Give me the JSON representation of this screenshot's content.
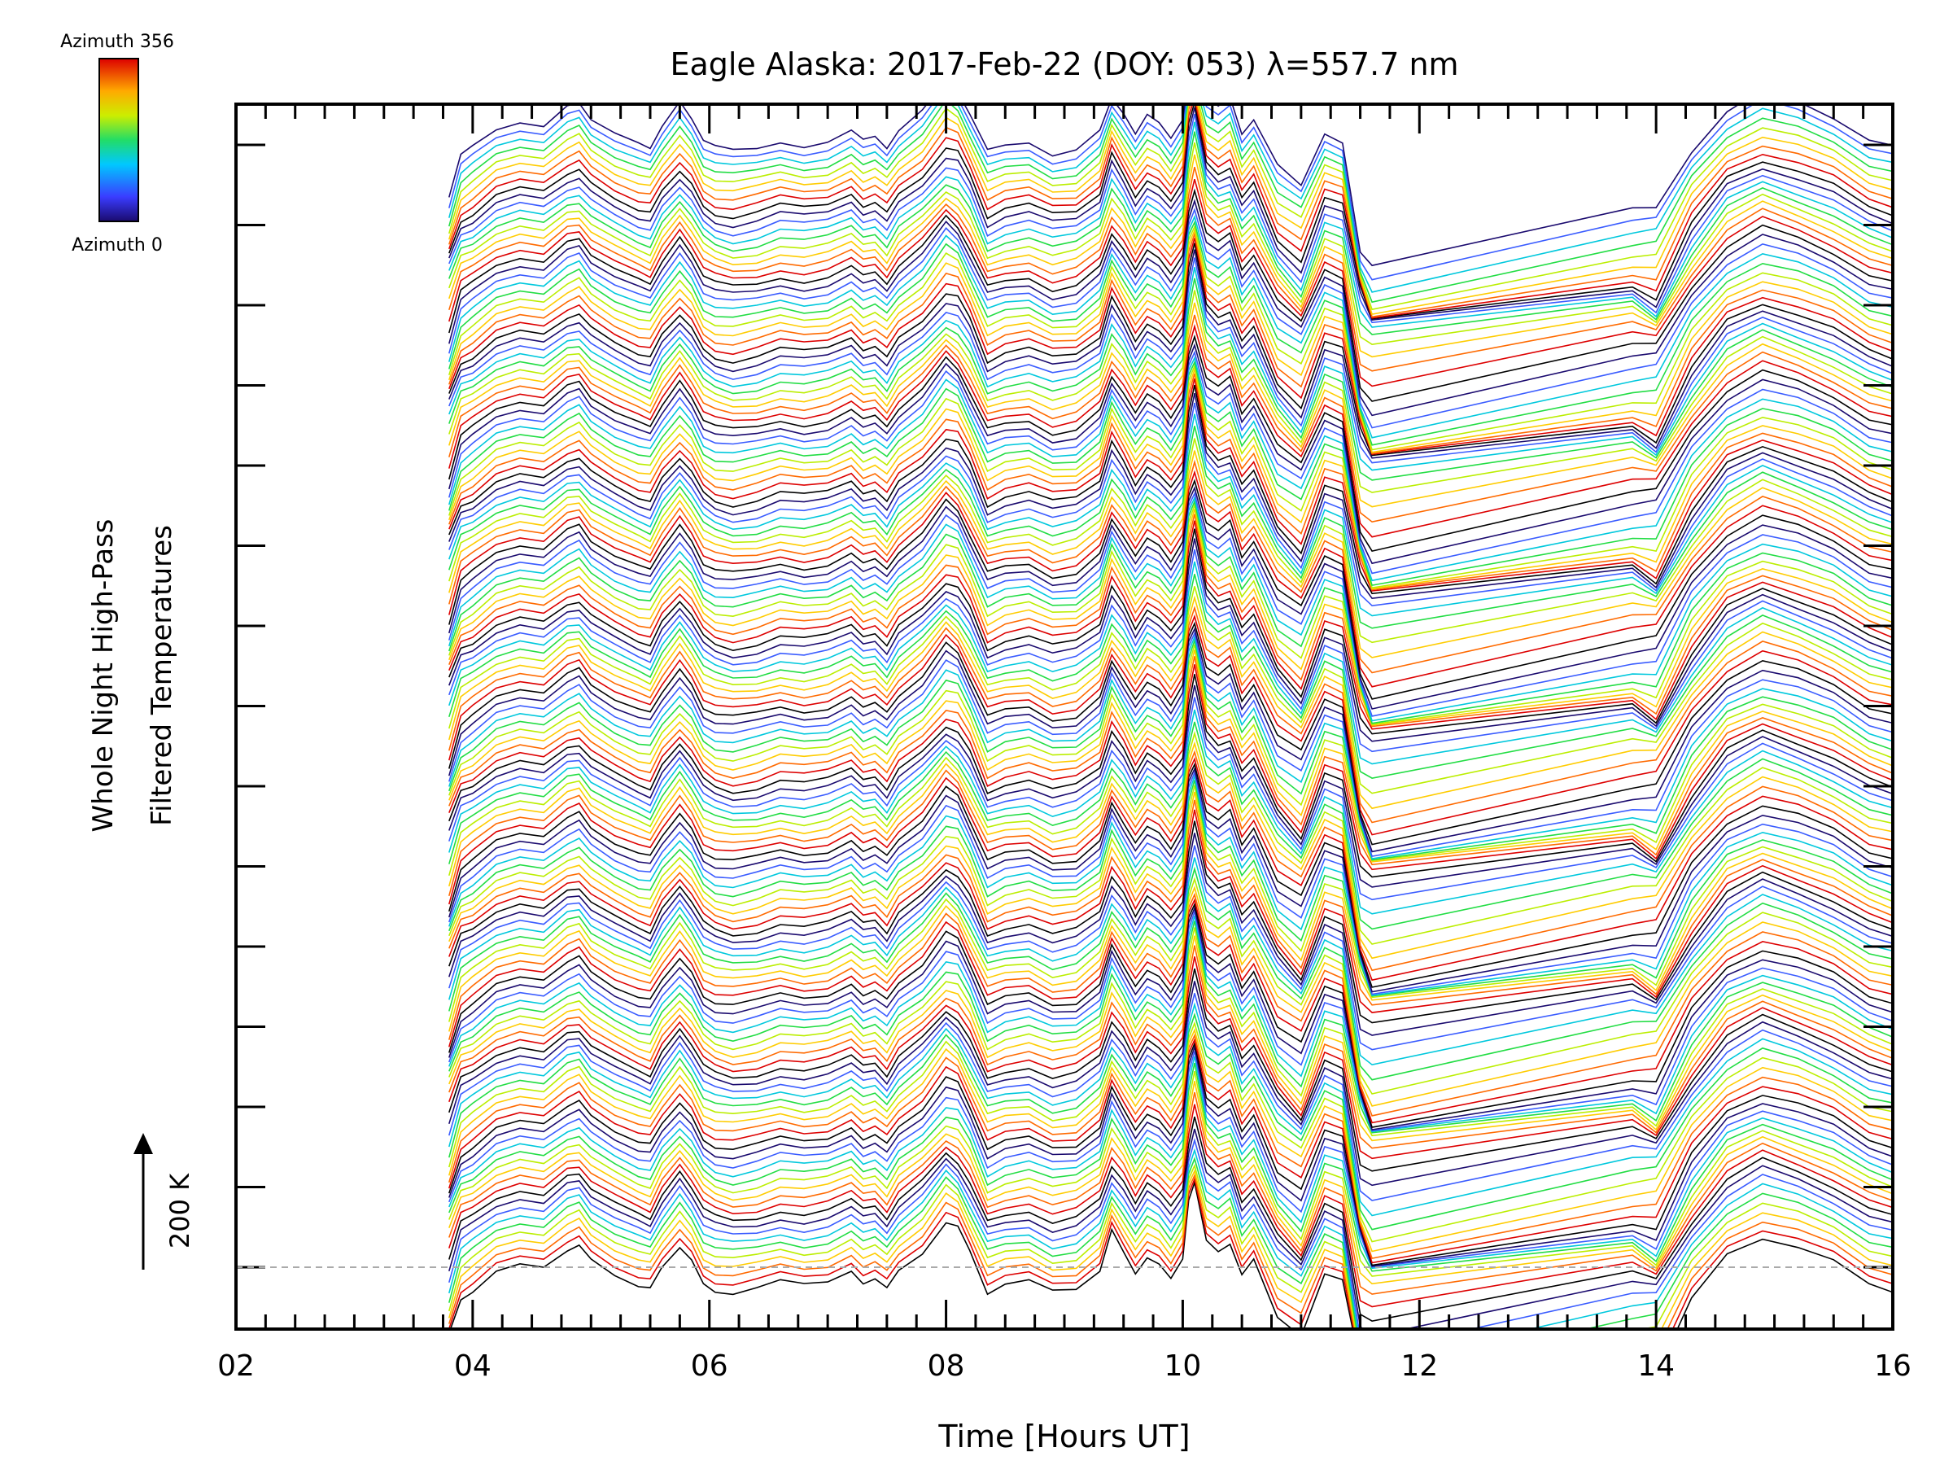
{
  "chart_data": {
    "type": "line",
    "title": "Eagle Alaska: 2017-Feb-22 (DOY: 053) λ=557.7 nm",
    "xlabel": "Time [Hours UT]",
    "ylabel_line1": "Whole Night High-Pass",
    "ylabel_line2": "Filtered Temperatures",
    "scale_label": "200 K",
    "xlim": [
      2,
      16
    ],
    "x_tick_labels": [
      "02",
      "04",
      "06",
      "08",
      "10",
      "12",
      "14",
      "16"
    ],
    "x_ticks": [
      2,
      4,
      6,
      8,
      10,
      12,
      14,
      16
    ],
    "colorbar": {
      "top_label": "Azimuth 356",
      "bottom_label": "Azimuth 0",
      "range": [
        0,
        356
      ],
      "colormap": "rainbow"
    },
    "grid": false,
    "baseline_dashed": true,
    "data_start": 3.8,
    "data_end": 16,
    "gap": [
      11.6,
      13.8
    ],
    "n_series": 144,
    "series_shape": {
      "x": [
        3.8,
        3.9,
        4.0,
        4.2,
        4.4,
        4.6,
        4.8,
        4.9,
        5.0,
        5.2,
        5.4,
        5.5,
        5.6,
        5.75,
        5.85,
        5.95,
        6.05,
        6.2,
        6.4,
        6.6,
        6.8,
        7.0,
        7.2,
        7.3,
        7.4,
        7.5,
        7.6,
        7.8,
        8.0,
        8.1,
        8.2,
        8.35,
        8.5,
        8.7,
        8.9,
        9.1,
        9.3,
        9.4,
        9.5,
        9.6,
        9.7,
        9.8,
        9.9,
        10.0,
        10.05,
        10.1,
        10.2,
        10.3,
        10.4,
        10.5,
        10.6,
        10.8,
        11.0,
        11.2,
        11.35,
        11.5,
        11.6,
        13.8,
        14.0,
        14.3,
        14.6,
        14.9,
        15.2,
        15.5,
        15.8,
        16.0
      ],
      "y": [
        -0.9,
        -0.4,
        -0.3,
        -0.05,
        0.05,
        0.0,
        0.25,
        0.3,
        0.1,
        -0.1,
        -0.25,
        -0.3,
        0.0,
        0.3,
        0.1,
        -0.2,
        -0.3,
        -0.35,
        -0.3,
        -0.2,
        -0.25,
        -0.2,
        -0.05,
        -0.2,
        -0.15,
        -0.3,
        -0.05,
        0.2,
        0.6,
        0.5,
        0.2,
        -0.35,
        -0.25,
        -0.2,
        -0.35,
        -0.3,
        -0.05,
        0.45,
        0.2,
        -0.1,
        0.15,
        0.05,
        -0.15,
        0.1,
        0.8,
        1.1,
        0.4,
        0.25,
        0.35,
        -0.1,
        0.1,
        -0.6,
        -0.9,
        -0.1,
        -0.2,
        -1.5,
        -1.8,
        -1.2,
        -1.3,
        -0.4,
        0.2,
        0.45,
        0.3,
        0.1,
        -0.2,
        -0.3
      ]
    },
    "series_colors": [
      "#000000",
      "#dd0000",
      "#ff6a00",
      "#ffcc00",
      "#bbee00",
      "#22dd44",
      "#00c8dd",
      "#3a5cff",
      "#1a0a6e"
    ]
  }
}
